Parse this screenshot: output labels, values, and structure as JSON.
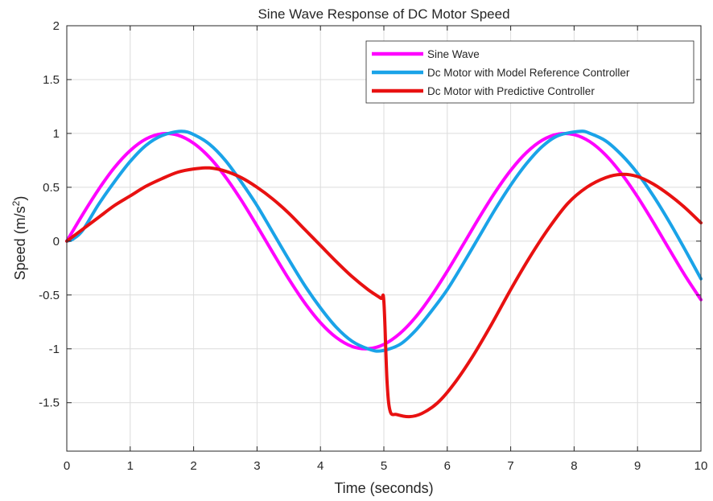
{
  "chart_data": {
    "type": "line",
    "title": "Sine Wave Response of DC Motor Speed",
    "xlabel": "Time (seconds)",
    "ylabel_main": "Speed (m/s",
    "ylabel_sup": "2",
    "ylabel_close": ")",
    "xlim": [
      0,
      10
    ],
    "ylim": [
      -1.95,
      2
    ],
    "x_ticks": [
      0,
      1,
      2,
      3,
      4,
      5,
      6,
      7,
      8,
      9,
      10
    ],
    "x_tick_labels": [
      "0",
      "1",
      "2",
      "3",
      "4",
      "5",
      "6",
      "7",
      "8",
      "9",
      "10"
    ],
    "y_ticks": [
      2,
      1.5,
      1,
      0.5,
      0,
      -0.5,
      -1,
      -1.5
    ],
    "y_tick_labels": [
      "2",
      "1.5",
      "1",
      "0.5",
      "0",
      "-0.5",
      "-1",
      "-1.5"
    ],
    "grid": true,
    "legend_position": "top-right",
    "series": [
      {
        "name": "Sine Wave",
        "color": "#ff00ff",
        "x": [
          0,
          0.25,
          0.5,
          0.75,
          1,
          1.25,
          1.5,
          1.75,
          2,
          2.25,
          2.5,
          2.75,
          3,
          3.25,
          3.5,
          3.75,
          4,
          4.25,
          4.5,
          4.75,
          5,
          5.25,
          5.5,
          5.75,
          6,
          6.25,
          6.5,
          6.75,
          7,
          7.25,
          7.5,
          7.75,
          8,
          8.25,
          8.5,
          8.75,
          9,
          9.25,
          9.5,
          9.75,
          10
        ],
        "y": [
          0,
          0.247,
          0.479,
          0.682,
          0.841,
          0.949,
          0.997,
          0.984,
          0.909,
          0.778,
          0.598,
          0.382,
          0.141,
          -0.108,
          -0.351,
          -0.572,
          -0.757,
          -0.895,
          -0.978,
          -0.999,
          -0.959,
          -0.859,
          -0.706,
          -0.508,
          -0.279,
          -0.033,
          0.215,
          0.45,
          0.657,
          0.823,
          0.938,
          0.994,
          0.989,
          0.923,
          0.798,
          0.624,
          0.412,
          0.174,
          -0.075,
          -0.32,
          -0.544
        ]
      },
      {
        "name": "Dc Motor with Model Reference Controller",
        "color": "#1aa3e8",
        "x": [
          0,
          0.1,
          0.25,
          0.5,
          0.75,
          1,
          1.25,
          1.5,
          1.8,
          2,
          2.25,
          2.5,
          2.75,
          3,
          3.25,
          3.5,
          3.75,
          4,
          4.25,
          4.5,
          4.75,
          4.95,
          5.25,
          5.5,
          5.75,
          6,
          6.25,
          6.5,
          6.75,
          7,
          7.25,
          7.5,
          7.75,
          8.1,
          8.25,
          8.5,
          8.75,
          9,
          9.25,
          9.5,
          9.75,
          10
        ],
        "y": [
          0,
          0.02,
          0.1,
          0.34,
          0.55,
          0.74,
          0.89,
          0.98,
          1.02,
          0.99,
          0.9,
          0.75,
          0.55,
          0.33,
          0.08,
          -0.17,
          -0.41,
          -0.62,
          -0.8,
          -0.93,
          -1.0,
          -1.02,
          -0.96,
          -0.83,
          -0.65,
          -0.45,
          -0.21,
          0.04,
          0.29,
          0.52,
          0.72,
          0.88,
          0.98,
          1.02,
          1.0,
          0.93,
          0.8,
          0.63,
          0.42,
          0.18,
          -0.08,
          -0.35
        ]
      },
      {
        "name": "Dc Motor with Predictive Controller",
        "color": "#e81111",
        "x": [
          0,
          0.25,
          0.5,
          0.75,
          1,
          1.25,
          1.5,
          1.75,
          2,
          2.25,
          2.5,
          2.75,
          3,
          3.25,
          3.5,
          3.75,
          4,
          4.25,
          4.5,
          4.75,
          4.95,
          5.0,
          5.05,
          5.1,
          5.2,
          5.4,
          5.6,
          5.85,
          6.1,
          6.4,
          6.7,
          7.0,
          7.3,
          7.6,
          7.9,
          8.2,
          8.5,
          8.75,
          9.0,
          9.25,
          9.5,
          9.75,
          10
        ],
        "y": [
          0,
          0.11,
          0.22,
          0.33,
          0.42,
          0.51,
          0.58,
          0.64,
          0.67,
          0.68,
          0.65,
          0.59,
          0.5,
          0.39,
          0.26,
          0.11,
          -0.04,
          -0.19,
          -0.33,
          -0.45,
          -0.53,
          -0.56,
          -1.3,
          -1.58,
          -1.61,
          -1.63,
          -1.6,
          -1.5,
          -1.33,
          -1.07,
          -0.77,
          -0.45,
          -0.15,
          0.12,
          0.35,
          0.5,
          0.59,
          0.62,
          0.6,
          0.53,
          0.43,
          0.31,
          0.17
        ]
      }
    ]
  }
}
